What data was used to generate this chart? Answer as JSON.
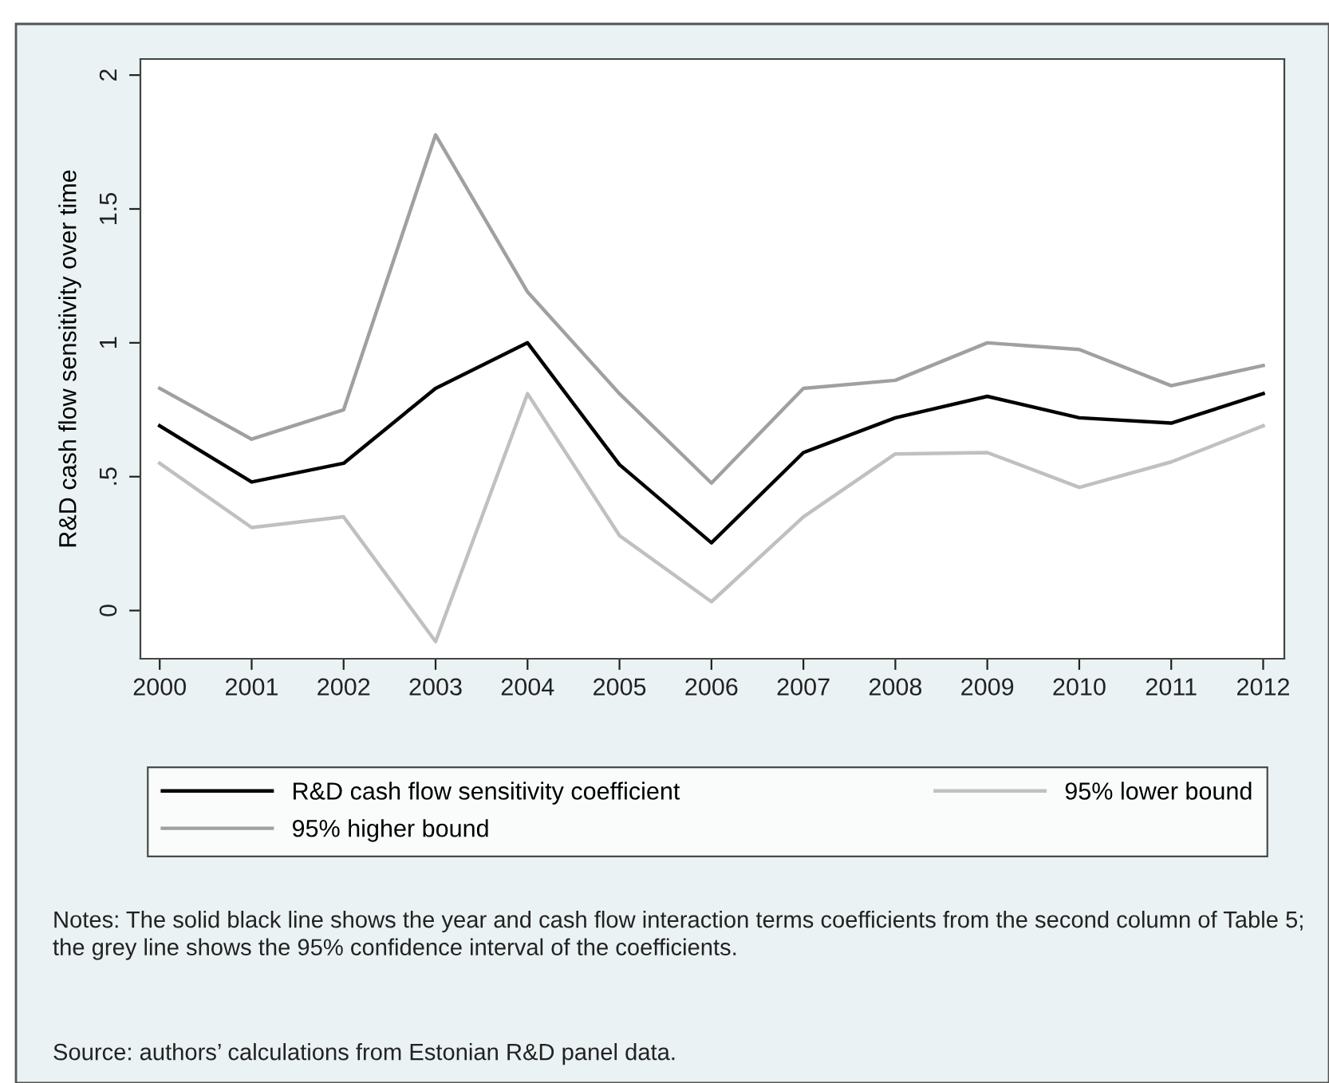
{
  "chart_data": {
    "type": "line",
    "ylabel": "R&D cash flow sensitivity over time",
    "x": [
      2000,
      2001,
      2002,
      2003,
      2004,
      2005,
      2006,
      2007,
      2008,
      2009,
      2010,
      2011,
      2012
    ],
    "xlim": [
      1999.79,
      2012.23
    ],
    "xticks": [
      2000,
      2001,
      2002,
      2003,
      2004,
      2005,
      2006,
      2007,
      2008,
      2009,
      2010,
      2011,
      2012
    ],
    "ylim": [
      -0.18,
      2.06
    ],
    "yticks": [
      {
        "value": 0,
        "label": "0"
      },
      {
        "value": 0.5,
        "label": ".5"
      },
      {
        "value": 1,
        "label": "1"
      },
      {
        "value": 1.5,
        "label": "1.5"
      },
      {
        "value": 2,
        "label": "2"
      }
    ],
    "series": [
      {
        "name": "R&D cash flow sensitivity coefficient",
        "color": "#000000",
        "values": [
          0.69,
          0.48,
          0.55,
          0.83,
          1.0,
          0.545,
          0.253,
          0.59,
          0.72,
          0.8,
          0.72,
          0.7,
          0.81
        ]
      },
      {
        "name": "95% lower bound",
        "color": "#c0c0c0",
        "values": [
          0.55,
          0.31,
          0.35,
          -0.116,
          0.81,
          0.28,
          0.033,
          0.35,
          0.585,
          0.59,
          0.46,
          0.555,
          0.69
        ]
      },
      {
        "name": "95% higher bound",
        "color": "#a0a0a0",
        "values": [
          0.83,
          0.64,
          0.75,
          1.777,
          1.19,
          0.81,
          0.476,
          0.83,
          0.86,
          1.0,
          0.975,
          0.84,
          0.915
        ]
      }
    ],
    "legend": "bottom",
    "grid": false,
    "marker": "none",
    "line_style": "solid",
    "annotations": [
      "Notes: The solid black line shows the year and cash flow interaction terms coefficients from the second column of Table 5; the grey line shows the 95% confidence interval of the coefficients.",
      "Source: authors’ calculations from Estonian R&D panel data."
    ]
  }
}
